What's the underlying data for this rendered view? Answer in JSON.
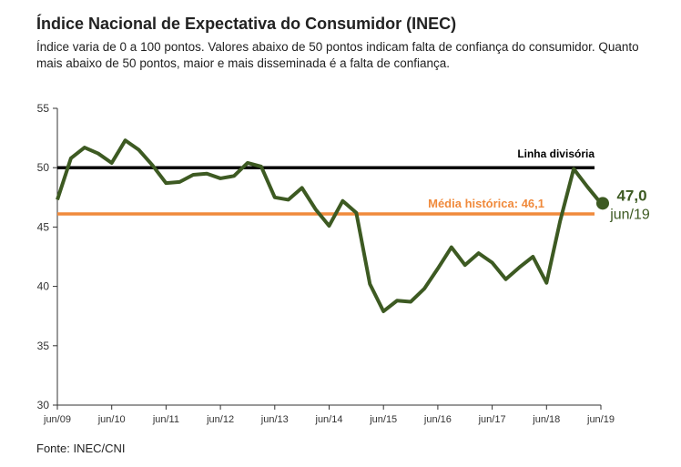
{
  "title": "Índice Nacional de Expectativa do Consumidor (INEC)",
  "subtitle": "Índice varia de 0 a 100 pontos. Valores abaixo de 50 pontos indicam falta de confiança do consumidor. Quanto mais abaixo de 50 pontos, maior e mais disseminada é a falta de confiança.",
  "source": "Fonte: INEC/CNI",
  "chart_data": {
    "type": "line",
    "title": "Índice Nacional de Expectativa do Consumidor (INEC)",
    "xlabel": "",
    "ylabel": "",
    "ylim": [
      30,
      55
    ],
    "yticks": [
      30,
      35,
      40,
      45,
      50,
      55
    ],
    "xticks": [
      "jun/09",
      "jun/10",
      "jun/11",
      "jun/12",
      "jun/13",
      "jun/14",
      "jun/15",
      "jun/16",
      "jun/17",
      "jun/18",
      "jun/19"
    ],
    "series": [
      {
        "name": "INEC",
        "color": "#3d5a22",
        "values": [
          47.3,
          50.8,
          51.7,
          51.2,
          50.4,
          52.3,
          51.5,
          50.2,
          48.7,
          48.8,
          49.4,
          49.5,
          49.1,
          49.3,
          50.4,
          50.1,
          47.5,
          47.3,
          48.3,
          46.5,
          45.1,
          47.2,
          46.2,
          40.2,
          37.9,
          38.8,
          38.7,
          39.8,
          41.5,
          43.3,
          41.8,
          42.8,
          42.0,
          40.6,
          41.6,
          42.5,
          40.3,
          45.5,
          49.9,
          48.4,
          47.0
        ]
      }
    ],
    "reference_lines": [
      {
        "label": "Linha divisória",
        "value": 50,
        "color": "#000000"
      },
      {
        "label": "Média histórica: 46,1",
        "value": 46.1,
        "color": "#f08a3c"
      }
    ],
    "last_point": {
      "value_label": "47,0",
      "date_label": "jun/19"
    }
  }
}
